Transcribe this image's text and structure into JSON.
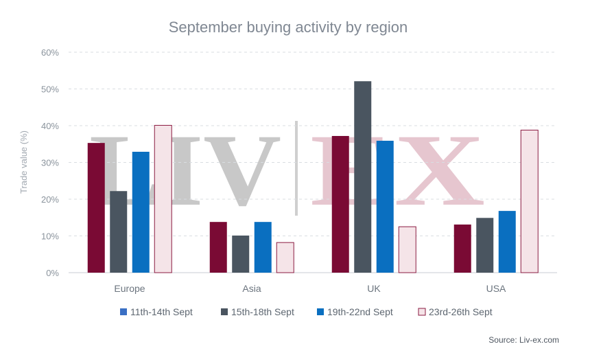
{
  "chart_data": {
    "type": "bar",
    "title": "September buying activity by region",
    "ylabel": "Trade value (%)",
    "xlabel": "",
    "categories": [
      "Europe",
      "Asia",
      "UK",
      "USA"
    ],
    "ylim": [
      0,
      60
    ],
    "yticks": [
      0,
      10,
      20,
      30,
      40,
      50,
      60
    ],
    "ytick_labels": [
      "0%",
      "10%",
      "20%",
      "30%",
      "40%",
      "50%",
      "60%"
    ],
    "grid": true,
    "legend_position": "bottom",
    "series": [
      {
        "name": "11th-14th Sept",
        "values": [
          35.3,
          13.8,
          37.2,
          13.1
        ],
        "color": "#7a0a34",
        "legend_color": "#3a6fc4",
        "outline": ""
      },
      {
        "name": "15th-18th Sept",
        "values": [
          22.2,
          10.1,
          52.1,
          14.9
        ],
        "color": "#4a5560",
        "legend_color": "#4a5560",
        "outline": ""
      },
      {
        "name": "19th-22nd Sept",
        "values": [
          32.9,
          13.8,
          35.9,
          16.8
        ],
        "color": "#0a6fc0",
        "legend_color": "#0a6fc0",
        "outline": ""
      },
      {
        "name": "23rd-26th Sept",
        "values": [
          40.1,
          8.2,
          12.5,
          38.8
        ],
        "color": "#f5e4e8",
        "legend_color": "#f5e4e8",
        "outline": "#8a1a40"
      }
    ],
    "source": "Source: Liv-ex.com",
    "watermark": {
      "left": "LIV",
      "right": "EX"
    }
  }
}
